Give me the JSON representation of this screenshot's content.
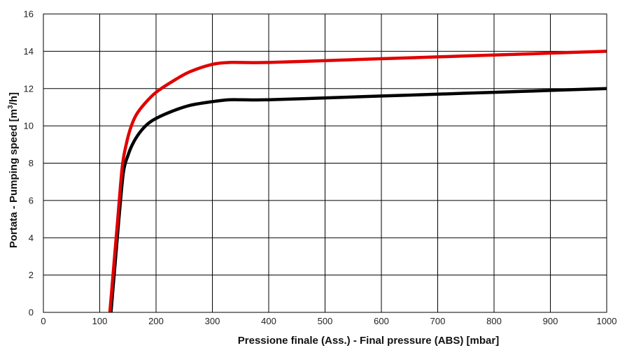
{
  "chart_data": {
    "type": "line",
    "title": "",
    "xlabel": "Pressione finale (Ass.) - Final pressure (ABS) [mbar]",
    "ylabel_parts": [
      "Portata - Pumping speed [m",
      "3",
      "/h]"
    ],
    "xlim": [
      0,
      1000
    ],
    "ylim": [
      0,
      16
    ],
    "xticks": [
      0,
      100,
      200,
      300,
      400,
      500,
      600,
      700,
      800,
      900,
      1000
    ],
    "yticks": [
      0,
      2,
      4,
      6,
      8,
      10,
      12,
      14,
      16
    ],
    "grid": true,
    "series": [
      {
        "color": "#e00000",
        "x": [
          118,
          125,
          132,
          140,
          147,
          155,
          165,
          180,
          200,
          230,
          260,
          300,
          330,
          350,
          400,
          500,
          600,
          700,
          800,
          900,
          1000
        ],
        "y": [
          0,
          2.5,
          5,
          7.8,
          9.0,
          9.9,
          10.6,
          11.2,
          11.8,
          12.4,
          12.9,
          13.3,
          13.4,
          13.4,
          13.4,
          13.5,
          13.6,
          13.7,
          13.8,
          13.9,
          14.0
        ]
      },
      {
        "color": "#000000",
        "x": [
          120,
          127,
          134,
          142,
          150,
          158,
          170,
          185,
          200,
          230,
          260,
          300,
          330,
          350,
          400,
          500,
          600,
          700,
          800,
          900,
          1000
        ],
        "y": [
          0,
          2.5,
          5,
          7.5,
          8.4,
          9.0,
          9.6,
          10.1,
          10.4,
          10.8,
          11.1,
          11.3,
          11.4,
          11.4,
          11.4,
          11.5,
          11.6,
          11.7,
          11.8,
          11.9,
          12.0
        ]
      }
    ]
  }
}
